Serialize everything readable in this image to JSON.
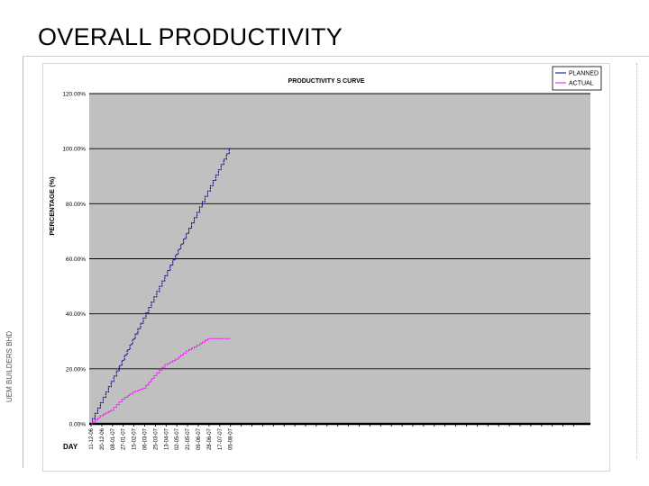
{
  "slide": {
    "title": "OVERALL PRODUCTIVITY",
    "side_text": "UEM BUILDERS BHD"
  },
  "chart_data": {
    "type": "line",
    "title": "PRODUCTIVITY S CURVE",
    "xlabel": "DAY",
    "ylabel": "PERCENTAGE (%)",
    "ylim": [
      0,
      120
    ],
    "yticks": [
      0,
      20,
      40,
      60,
      80,
      100,
      120
    ],
    "ytick_labels": [
      "0.00%",
      "20.00%",
      "40.00%",
      "60.00%",
      "80.00%",
      "100.00%",
      "120.00%"
    ],
    "x_categories": [
      "11-12-06",
      "20-12-06",
      "08-01-07",
      "27-01-07",
      "15-02-07",
      "06-03-07",
      "25-03-07",
      "13-04-07",
      "02-05-07",
      "21-05-07",
      "09-06-07",
      "28-06-07",
      "17-07-07",
      "05-08-07"
    ],
    "x_slots": 45,
    "grid": true,
    "plot_background": "#c0c0c0",
    "legend_position": "top-right",
    "series": [
      {
        "name": "PLANNED",
        "color": "#000080",
        "values": [
          0,
          7.7,
          15.4,
          23.1,
          30.8,
          38.5,
          46.2,
          53.8,
          61.5,
          69.2,
          76.9,
          84.6,
          92.3,
          100
        ]
      },
      {
        "name": "ACTUAL",
        "color": "#ff00ff",
        "values": [
          0,
          3,
          5,
          9,
          11.5,
          13,
          17.5,
          21.5,
          23.5,
          26.5,
          28.5,
          31,
          31,
          31
        ]
      }
    ]
  }
}
